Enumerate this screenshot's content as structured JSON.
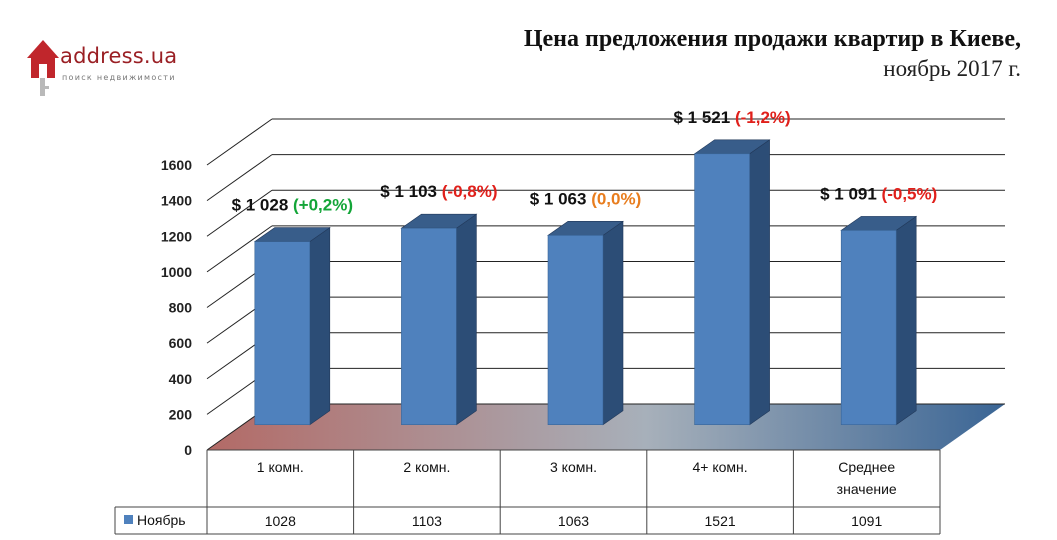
{
  "logo": {
    "name": "address.ua",
    "tagline": "поиск недвижимости"
  },
  "header": {
    "title": "Цена предложения продажи квартир в Киеве,",
    "subtitle": "ноябрь 2017 г."
  },
  "colors": {
    "bar_front": "#4f81bd",
    "bar_side": "#2c4d76",
    "bar_top": "#385d8a",
    "positive": "#13a538",
    "negative": "#e0201b",
    "neutral": "#e87d1e"
  },
  "chart_data": {
    "type": "bar",
    "categories": [
      "1 комн.",
      "2 комн.",
      "3 комн.",
      "4+ комн.",
      "Среднее значение"
    ],
    "series": [
      {
        "name": "Ноябрь",
        "values": [
          1028,
          1103,
          1063,
          1521,
          1091
        ]
      }
    ],
    "y_ticks": [
      "0",
      "200",
      "400",
      "600",
      "800",
      "1000",
      "1200",
      "1400",
      "1600"
    ],
    "ylim": [
      0,
      1600
    ],
    "grid": true,
    "legend": "data-table",
    "data_table": [
      "1028",
      "1103",
      "1063",
      "1521",
      "1091"
    ],
    "annotations": [
      {
        "price": "$ 1 028",
        "change": "(+0,2%)",
        "tone": "positive"
      },
      {
        "price": "$ 1 103",
        "change": "(-0,8%)",
        "tone": "negative"
      },
      {
        "price": "$  1 063",
        "change": "(0,0%)",
        "tone": "neutral"
      },
      {
        "price": "$ 1 521",
        "change": "(-1,2%)",
        "tone": "negative"
      },
      {
        "price": "$ 1 091",
        "change": "(-0,5%)",
        "tone": "negative"
      }
    ]
  }
}
